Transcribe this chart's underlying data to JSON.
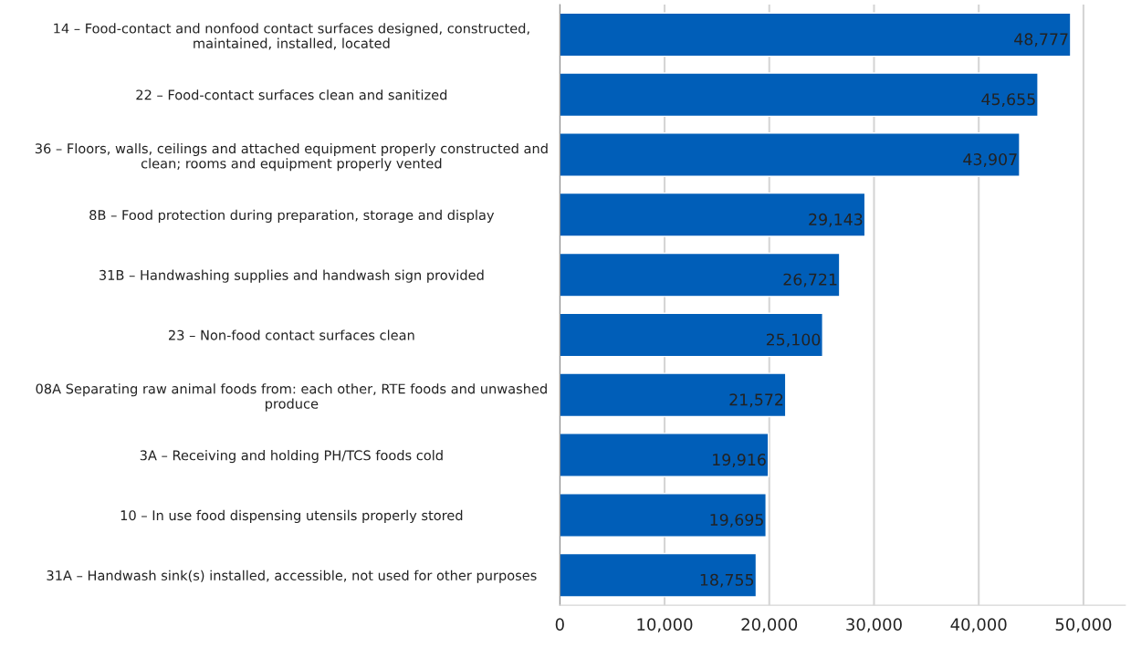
{
  "chart_data": {
    "type": "bar",
    "orientation": "horizontal",
    "categories": [
      "14 – Food-contact and nonfood contact surfaces designed, constructed, maintained, installed, located",
      "22 – Food-contact surfaces clean and sanitized",
      "36 – Floors, walls, ceilings and attached equipment properly constructed and clean; rooms and equipment properly vented",
      "8B – Food protection during preparation, storage and display",
      "31B – Handwashing supplies and handwash sign provided",
      "23 – Non-food contact surfaces clean",
      "08A Separating raw animal foods from: each other, RTE foods and unwashed produce",
      "3A – Receiving and holding PH/TCS foods cold",
      "10 – In use food dispensing utensils properly stored",
      "31A – Handwash sink(s) installed, accessible, not used for other purposes"
    ],
    "values": [
      48777,
      45655,
      43907,
      29143,
      26721,
      25100,
      21572,
      19916,
      19695,
      18755
    ],
    "color": "#005eb8",
    "xlim": [
      0,
      54000
    ],
    "xticks": [
      {
        "value": 0,
        "label": "0"
      },
      {
        "value": 10000,
        "label": "10,000"
      },
      {
        "value": 20000,
        "label": "20,000"
      },
      {
        "value": 30000,
        "label": "30,000"
      },
      {
        "value": 40000,
        "label": "40,000"
      },
      {
        "value": 50000,
        "label": "50,000"
      }
    ],
    "grid": "x",
    "value_labels": [
      "48,777",
      "45,655",
      "43,907",
      "29,143",
      "26,721",
      "25,100",
      "21,572",
      "19,916",
      "19,695",
      "18,755"
    ],
    "legend": false
  }
}
